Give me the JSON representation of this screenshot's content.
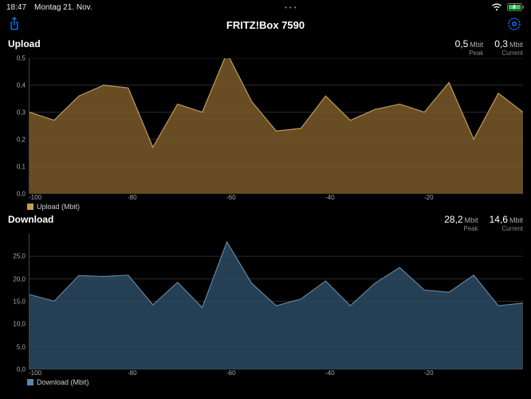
{
  "statusbar": {
    "time": "18:47",
    "date": "Montag 21. Nov.",
    "dots": "•••",
    "wifi_color": "#e8e8e8",
    "battery_color": "#34c759"
  },
  "navbar": {
    "title": "FRITZ!Box 7590",
    "accent_color": "#0a84ff"
  },
  "upload": {
    "title": "Upload",
    "peak_value": "0,5",
    "peak_unit": "Mbit",
    "peak_label": "Peak",
    "current_value": "0,3",
    "current_unit": "Mbit",
    "current_label": "Current",
    "legend_label": "Upload (Mbit)",
    "chart": {
      "type": "area",
      "fill_color": "#7a5a2a",
      "stroke_color": "#c89a4a",
      "swatch_color": "#c89a4a",
      "grid_color": "#2c2c2c",
      "background_color": "#000000",
      "opacity": 0.85,
      "ylim": [
        0,
        0.5
      ],
      "yticks": [
        0.0,
        0.1,
        0.2,
        0.3,
        0.4,
        0.5
      ],
      "ytick_labels": [
        "0,0",
        "0,1",
        "0,2",
        "0,3",
        "0,4",
        "0,5"
      ],
      "xlim": [
        -100,
        0
      ],
      "xticks": [
        -100,
        -80,
        -60,
        -40,
        -20
      ],
      "x": [
        -100,
        -95,
        -90,
        -85,
        -80,
        -75,
        -70,
        -65,
        -60,
        -55,
        -50,
        -45,
        -40,
        -35,
        -30,
        -25,
        -20,
        -15,
        -10,
        -5,
        0
      ],
      "y": [
        0.3,
        0.27,
        0.36,
        0.4,
        0.39,
        0.17,
        0.33,
        0.3,
        0.52,
        0.34,
        0.23,
        0.24,
        0.36,
        0.27,
        0.31,
        0.33,
        0.3,
        0.41,
        0.2,
        0.37,
        0.3
      ]
    }
  },
  "download": {
    "title": "Download",
    "peak_value": "28,2",
    "peak_unit": "Mbit",
    "peak_label": "Peak",
    "current_value": "14,6",
    "current_unit": "Mbit",
    "current_label": "Current",
    "legend_label": "Download (Mbit)",
    "chart": {
      "type": "area",
      "fill_color": "#2c4a63",
      "stroke_color": "#5a87aa",
      "swatch_color": "#5a87aa",
      "grid_color": "#2c2c2c",
      "background_color": "#000000",
      "opacity": 0.85,
      "ylim": [
        0,
        30
      ],
      "yticks": [
        0,
        5,
        10,
        15,
        20,
        25
      ],
      "ytick_labels": [
        "0,0",
        "5,0",
        "10,0",
        "15,0",
        "20,0",
        "25,0"
      ],
      "xlim": [
        -100,
        0
      ],
      "xticks": [
        -100,
        -80,
        -60,
        -40,
        -20
      ],
      "x": [
        -100,
        -95,
        -90,
        -85,
        -80,
        -75,
        -70,
        -65,
        -60,
        -55,
        -50,
        -45,
        -40,
        -35,
        -30,
        -25,
        -20,
        -15,
        -10,
        -5,
        0
      ],
      "y": [
        16.5,
        15.0,
        20.7,
        20.5,
        20.8,
        14.2,
        19.2,
        13.6,
        28.2,
        19.0,
        14.0,
        15.5,
        19.5,
        14.0,
        19.0,
        22.5,
        17.5,
        17.0,
        20.8,
        14.0,
        14.6
      ]
    }
  }
}
